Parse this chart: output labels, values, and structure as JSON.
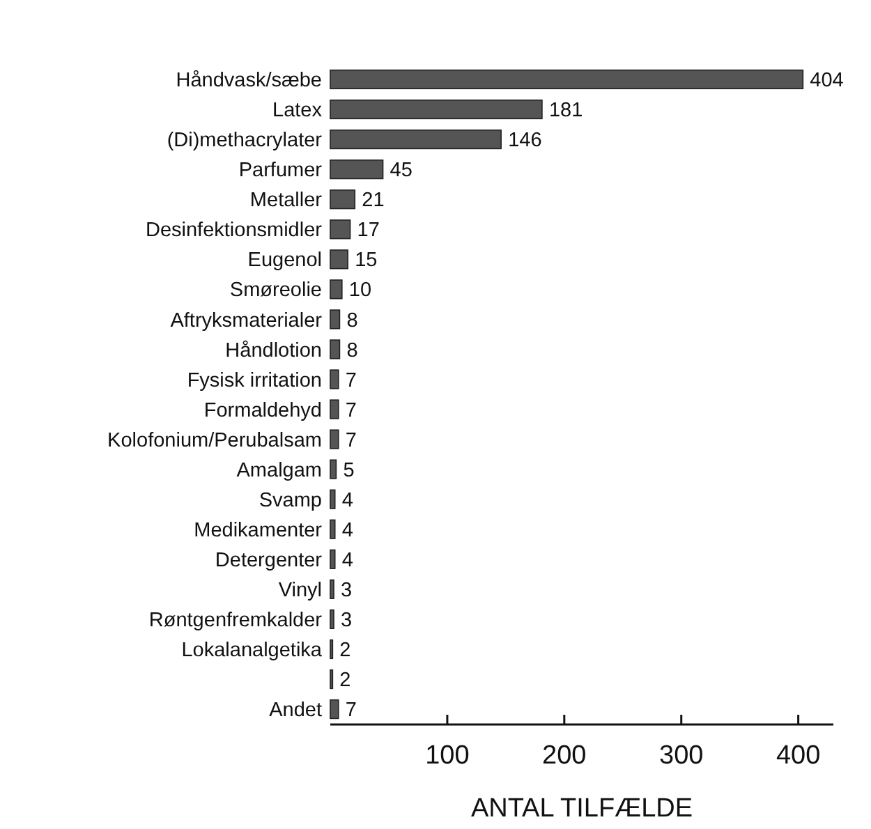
{
  "chart_data": {
    "type": "bar",
    "orientation": "horizontal",
    "xlabel": "ANTAL TILFÆLDE",
    "categories": [
      "Håndvask/sæbe",
      "Latex",
      "(Di)methacrylater",
      "Parfumer",
      "Metaller",
      "Desinfektionsmidler",
      "Eugenol",
      "Smøreolie",
      "Aftryksmaterialer",
      "Håndlotion",
      "Fysisk irritation",
      "Formaldehyd",
      "Kolofonium/Perubalsam",
      "Amalgam",
      "Svamp",
      "Medikamenter",
      "Detergenter",
      "Vinyl",
      "Røntgenfremkalder",
      "Lokalanalgetika",
      null,
      "Andet"
    ],
    "values": [
      404,
      181,
      146,
      45,
      21,
      17,
      15,
      10,
      8,
      8,
      7,
      7,
      7,
      5,
      4,
      4,
      4,
      3,
      3,
      2,
      2,
      7
    ],
    "color": "#555555",
    "xlim": [
      0,
      430
    ],
    "xticks": [
      100,
      200,
      300,
      400
    ],
    "data_labels": true,
    "grid": false
  }
}
